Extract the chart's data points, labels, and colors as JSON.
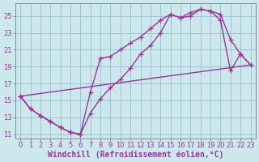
{
  "xlabel": "Windchill (Refroidissement éolien,°C)",
  "bg_color": "#cce8ec",
  "grid_color": "#99bbcc",
  "line_color": "#993399",
  "xlim": [
    -0.5,
    23.5
  ],
  "ylim": [
    10.5,
    26.5
  ],
  "xticks": [
    0,
    1,
    2,
    3,
    4,
    5,
    6,
    7,
    8,
    9,
    10,
    11,
    12,
    13,
    14,
    15,
    16,
    17,
    18,
    19,
    20,
    21,
    22,
    23
  ],
  "yticks": [
    11,
    13,
    15,
    17,
    19,
    21,
    23,
    25
  ],
  "curve1_x": [
    0,
    1,
    2,
    3,
    4,
    5,
    6,
    7,
    8,
    9,
    10,
    11,
    12,
    13,
    14,
    15,
    16,
    17,
    18,
    19,
    20,
    21,
    22,
    23
  ],
  "curve1_y": [
    15.5,
    14.0,
    13.2,
    12.5,
    11.8,
    11.2,
    11.0,
    13.5,
    15.2,
    16.5,
    17.5,
    18.8,
    20.5,
    21.5,
    23.0,
    25.2,
    24.8,
    25.0,
    25.8,
    25.6,
    25.2,
    22.2,
    20.5,
    19.2
  ],
  "curve2_x": [
    0,
    1,
    2,
    3,
    4,
    5,
    6,
    7,
    8,
    9,
    10,
    11,
    12,
    13,
    14,
    15,
    16,
    17,
    18,
    19,
    20,
    21,
    22,
    23
  ],
  "curve2_y": [
    15.5,
    14.0,
    13.2,
    12.5,
    11.8,
    11.2,
    11.0,
    16.0,
    20.0,
    20.2,
    21.0,
    21.8,
    22.5,
    23.5,
    24.5,
    25.2,
    24.8,
    25.4,
    25.8,
    25.6,
    24.5,
    18.5,
    20.5,
    19.2
  ],
  "line3_x": [
    0,
    23
  ],
  "line3_y": [
    15.5,
    19.2
  ],
  "marker_size": 4,
  "linewidth": 1.0,
  "font_size_tick": 6,
  "font_size_label": 7
}
